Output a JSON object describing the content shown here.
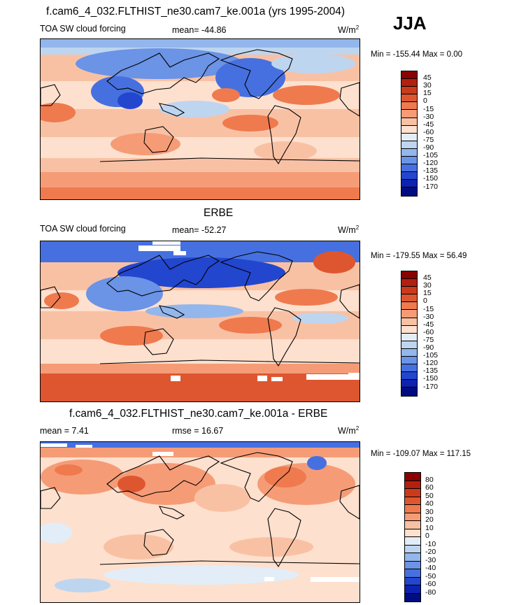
{
  "header": {
    "title": "f.cam6_4_032.FLTHIST_ne30.cam7_ke.001a (yrs 1995-2004)",
    "season": "JJA"
  },
  "panels": [
    {
      "title": "",
      "variable": "TOA SW cloud forcing",
      "stat": "mean= -44.86",
      "units": "W/m",
      "units_sup": "2",
      "minmax": "Min = -155.44 Max =   0.00",
      "colorbar": {
        "labels": [
          "45",
          "30",
          "15",
          "0",
          "-15",
          "-30",
          "-45",
          "-60",
          "-75",
          "-90",
          "-105",
          "-120",
          "-135",
          "-150",
          "-170"
        ],
        "colors": [
          "#8b0000",
          "#b22010",
          "#cc3a1c",
          "#de5630",
          "#ef7a4e",
          "#f59c77",
          "#f9c1a4",
          "#fde0ce",
          "#e3edf7",
          "#bed5f0",
          "#93b6ec",
          "#6b93e6",
          "#4670df",
          "#2346cf",
          "#0d22b0",
          "#000c80"
        ]
      }
    },
    {
      "title": "ERBE",
      "variable": "TOA SW cloud forcing",
      "stat": "mean= -52.27",
      "units": "W/m",
      "units_sup": "2",
      "minmax": "Min = -179.55 Max =  56.49",
      "colorbar": {
        "labels": [
          "45",
          "30",
          "15",
          "0",
          "-15",
          "-30",
          "-45",
          "-60",
          "-75",
          "-90",
          "-105",
          "-120",
          "-135",
          "-150",
          "-170"
        ],
        "colors": [
          "#8b0000",
          "#b22010",
          "#cc3a1c",
          "#de5630",
          "#ef7a4e",
          "#f59c77",
          "#f9c1a4",
          "#fde0ce",
          "#e3edf7",
          "#bed5f0",
          "#93b6ec",
          "#6b93e6",
          "#4670df",
          "#2346cf",
          "#0d22b0",
          "#000c80"
        ]
      }
    },
    {
      "title": "f.cam6_4_032.FLTHIST_ne30.cam7_ke.001a - ERBE",
      "variable": "mean =   7.41",
      "stat": "rmse =  16.67",
      "units": "W/m",
      "units_sup": "2",
      "minmax": "Min = -109.07 Max = 117.15",
      "colorbar": {
        "labels": [
          "80",
          "60",
          "50",
          "40",
          "30",
          "20",
          "10",
          "0",
          "-10",
          "-20",
          "-30",
          "-40",
          "-50",
          "-60",
          "-80"
        ],
        "colors": [
          "#8b0000",
          "#b22010",
          "#cc3a1c",
          "#de5630",
          "#ef7a4e",
          "#f59c77",
          "#f9c1a4",
          "#fde0ce",
          "#e3edf7",
          "#bed5f0",
          "#93b6ec",
          "#6b93e6",
          "#4670df",
          "#2346cf",
          "#0d22b0",
          "#000c80"
        ]
      }
    }
  ]
}
